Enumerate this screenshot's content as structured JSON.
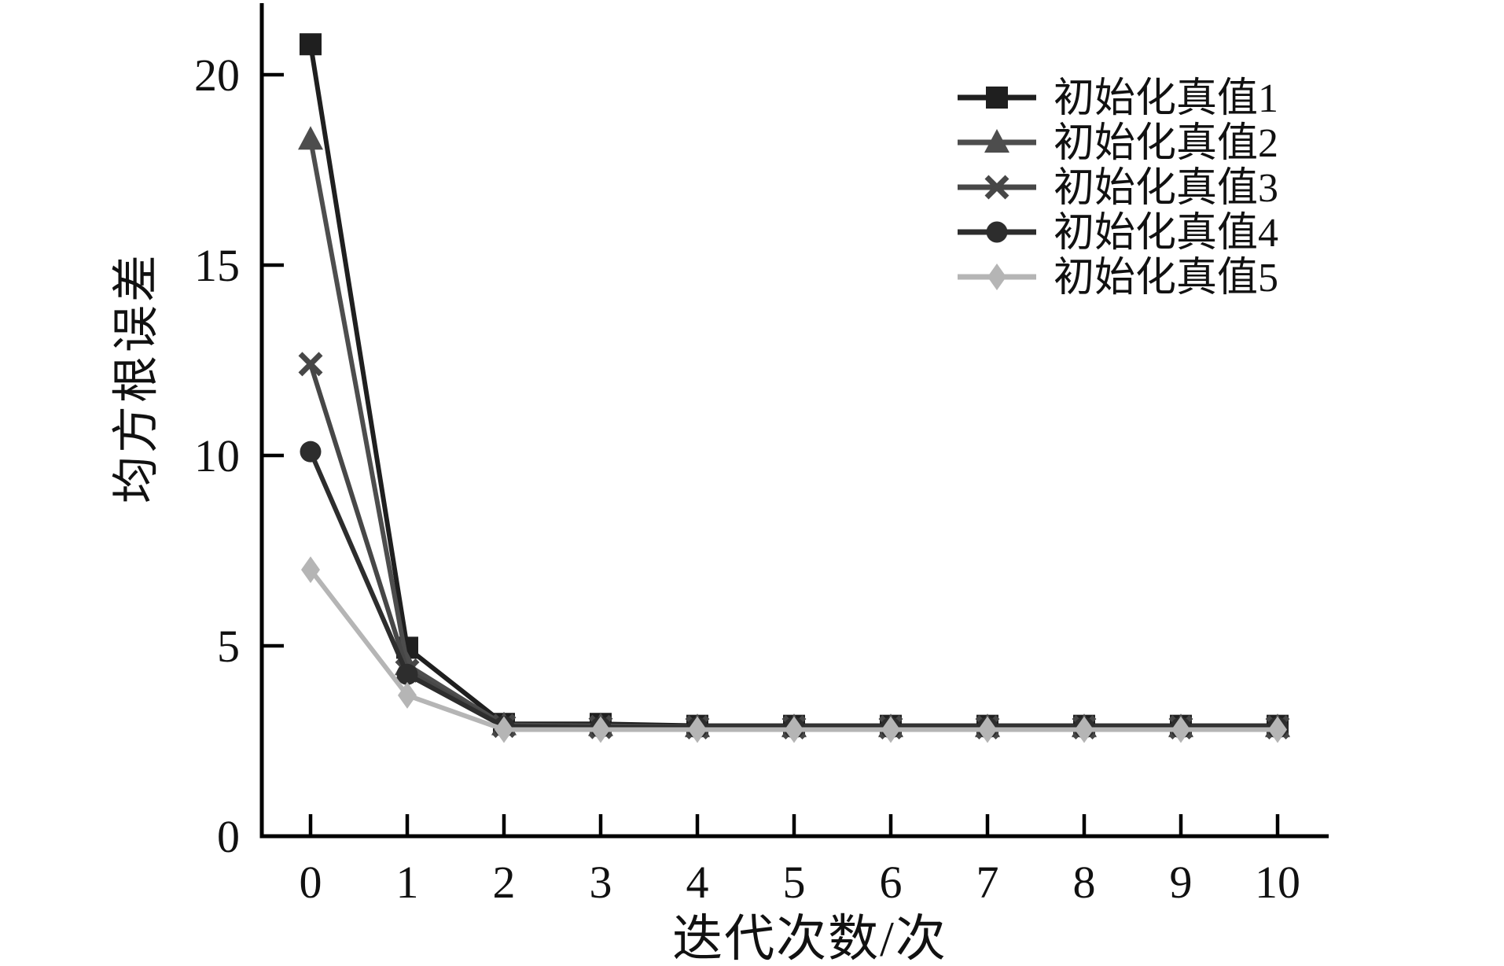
{
  "chart_data": {
    "type": "line",
    "title": "",
    "xlabel": "迭代次数/次",
    "ylabel": "均方根误差",
    "x": [
      0,
      1,
      2,
      3,
      4,
      5,
      6,
      7,
      8,
      9,
      10
    ],
    "xticks": [
      0,
      1,
      2,
      3,
      4,
      5,
      6,
      7,
      8,
      9,
      10
    ],
    "yticks": [
      0,
      5,
      10,
      15,
      20
    ],
    "xlim": [
      -0.5,
      10.5
    ],
    "ylim": [
      0,
      21.8
    ],
    "grid": false,
    "legend_position": "top-right",
    "series": [
      {
        "name": "初始化真值1",
        "marker": "square",
        "color": "#1f1f1f",
        "values": [
          20.8,
          4.95,
          2.95,
          2.95,
          2.9,
          2.9,
          2.9,
          2.9,
          2.9,
          2.9,
          2.9
        ]
      },
      {
        "name": "初始化真值2",
        "marker": "triangle",
        "color": "#4d4d4d",
        "values": [
          18.3,
          4.5,
          2.92,
          2.9,
          2.87,
          2.87,
          2.87,
          2.87,
          2.87,
          2.87,
          2.87
        ]
      },
      {
        "name": "初始化真值3",
        "marker": "x",
        "color": "#474747",
        "values": [
          12.4,
          4.35,
          2.9,
          2.87,
          2.86,
          2.86,
          2.86,
          2.86,
          2.86,
          2.86,
          2.86
        ]
      },
      {
        "name": "初始化真值4",
        "marker": "circle",
        "color": "#2d2d2d",
        "values": [
          10.1,
          4.25,
          2.88,
          2.86,
          2.85,
          2.85,
          2.85,
          2.85,
          2.85,
          2.85,
          2.85
        ]
      },
      {
        "name": "初始化真值5",
        "marker": "diamond",
        "color": "#b5b5b5",
        "values": [
          7.0,
          3.7,
          2.8,
          2.8,
          2.8,
          2.8,
          2.8,
          2.8,
          2.8,
          2.8,
          2.8
        ]
      }
    ]
  },
  "colors": {
    "background": "#ffffff",
    "axis": "#000000",
    "text": "#111111"
  }
}
